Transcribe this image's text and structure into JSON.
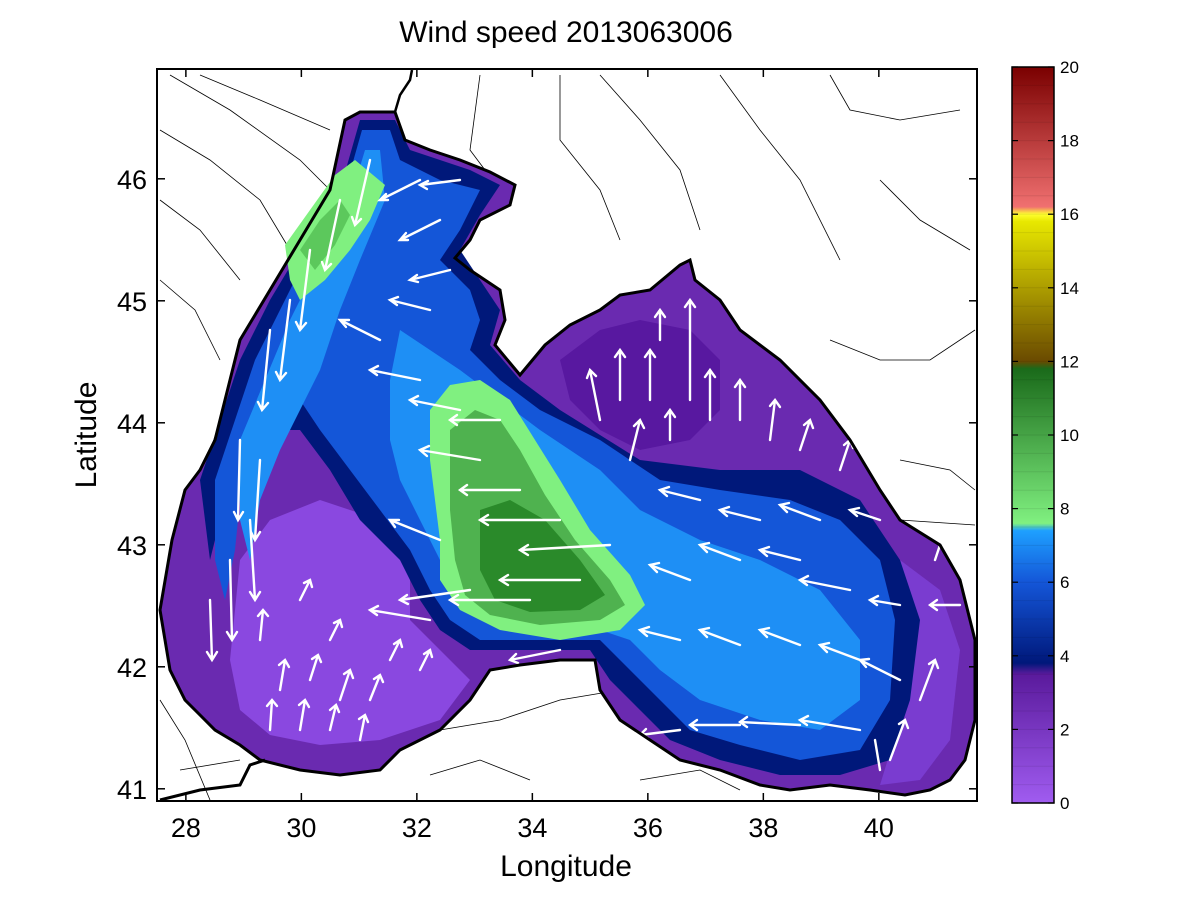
{
  "chart_data": {
    "type": "heatmap",
    "title": "Wind speed 2013063006",
    "xlabel": "Longitude",
    "ylabel": "Latitude",
    "xlim": [
      27.5,
      41.7
    ],
    "ylim": [
      40.9,
      46.9
    ],
    "xticks": [
      28,
      30,
      32,
      34,
      36,
      38,
      40
    ],
    "yticks": [
      41,
      42,
      43,
      44,
      45,
      46
    ],
    "grid": false,
    "colorbar": {
      "range": [
        0,
        20
      ],
      "ticks": [
        0,
        2,
        4,
        6,
        8,
        10,
        12,
        14,
        16,
        18,
        20
      ],
      "bands": [
        {
          "from": 0,
          "to": 3.5,
          "color": "#7a3dc4"
        },
        {
          "from": 3.5,
          "to": 7.5,
          "color": "#1a4fc0"
        },
        {
          "from": 7.5,
          "to": 12,
          "color": "#4fae4f"
        },
        {
          "from": 12,
          "to": 16,
          "color": "#8a8a10"
        },
        {
          "from": 16,
          "to": 20,
          "color": "#c43030"
        }
      ],
      "stops": [
        "#a05cf0",
        "#5a1a9c",
        "#00187a",
        "#1470e8",
        "#1ea0ff",
        "#80f080",
        "#1a6a1a",
        "#6a4a00",
        "#ffff00",
        "#f07070",
        "#7a0000"
      ]
    },
    "speed_regions": [
      {
        "level": 2,
        "desc": "southwestern basin",
        "lon": [
          29.5,
          32
        ],
        "lat": [
          41.3,
          42.8
        ]
      },
      {
        "level": 4,
        "desc": "northern shelf",
        "lon": [
          30,
          33
        ],
        "lat": [
          43,
          46.2
        ]
      },
      {
        "level": 9,
        "desc": "northwestern max",
        "lon": [
          29.8,
          30.8
        ],
        "lat": [
          45,
          46
        ]
      },
      {
        "level": 11,
        "desc": "central max",
        "lon": [
          32.5,
          35.5
        ],
        "lat": [
          42.3,
          44.2
        ]
      },
      {
        "level": 2.5,
        "desc": "eastern basin",
        "lon": [
          36,
          41
        ],
        "lat": [
          41,
          44.8
        ]
      },
      {
        "level": 6,
        "desc": "southern band",
        "lon": [
          35,
          40
        ],
        "lat": [
          41.4,
          42.8
        ]
      }
    ],
    "wind_vectors_note": "white arrows, predominantly westward over central/southern sea, southward along west coast, northward in east"
  }
}
